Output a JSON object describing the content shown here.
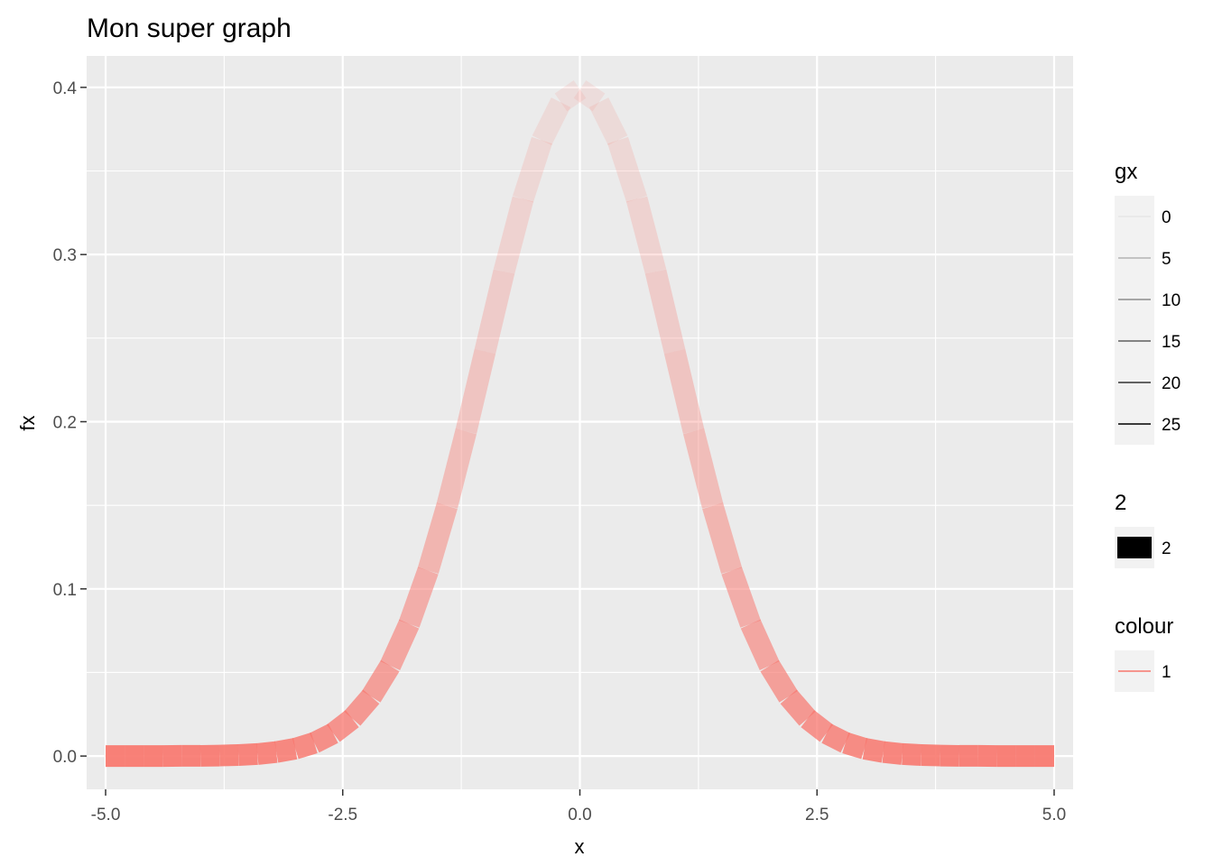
{
  "chart_data": {
    "type": "line",
    "title": "Mon super graph",
    "xlabel": "x",
    "ylabel": "fx",
    "xlim": [
      -5.2,
      5.2
    ],
    "ylim": [
      -0.0199,
      0.4188
    ],
    "x_ticks": [
      -5.0,
      -2.5,
      0.0,
      2.5,
      5.0
    ],
    "x_tick_labels": [
      "-5.0",
      "-2.5",
      "0.0",
      "2.5",
      "5.0"
    ],
    "y_ticks": [
      0.0,
      0.1,
      0.2,
      0.3,
      0.4
    ],
    "y_tick_labels": [
      "0.0",
      "0.1",
      "0.2",
      "0.3",
      "0.4"
    ],
    "grid": true,
    "series": [
      {
        "x": [
          -5.0,
          -4.8,
          -4.6,
          -4.4,
          -4.2,
          -4.0,
          -3.8,
          -3.6,
          -3.4,
          -3.2,
          -3.0,
          -2.8,
          -2.6,
          -2.4,
          -2.2,
          -2.0,
          -1.8,
          -1.6,
          -1.4,
          -1.2,
          -1.0,
          -0.8,
          -0.6,
          -0.4,
          -0.2,
          0.0,
          0.2,
          0.4,
          0.6,
          0.8,
          1.0,
          1.2,
          1.4,
          1.6,
          1.8,
          2.0,
          2.2,
          2.4,
          2.6,
          2.8,
          3.0,
          3.2,
          3.4,
          3.6,
          3.8,
          4.0,
          4.2,
          4.4,
          4.6,
          4.8,
          5.0
        ],
        "values": [
          0.0,
          0.0,
          0.0,
          0.0,
          0.0001,
          0.0001,
          0.0003,
          0.0006,
          0.0012,
          0.0024,
          0.0044,
          0.0079,
          0.0136,
          0.0224,
          0.0355,
          0.054,
          0.079,
          0.1109,
          0.1497,
          0.1942,
          0.242,
          0.2897,
          0.3332,
          0.3683,
          0.391,
          0.3989,
          0.391,
          0.3683,
          0.3332,
          0.2897,
          0.242,
          0.1942,
          0.1497,
          0.1109,
          0.079,
          0.054,
          0.0355,
          0.0224,
          0.0136,
          0.0079,
          0.0044,
          0.0024,
          0.0012,
          0.0006,
          0.0003,
          0.0001,
          0.0001,
          0.0,
          0.0,
          0.0,
          0.0
        ],
        "color": "#f8766d"
      }
    ],
    "legend_position": "right",
    "legends": [
      {
        "title": "gx",
        "entries": [
          "0",
          "5",
          "10",
          "15",
          "20",
          "25"
        ],
        "key_colors": [
          "#e6e6e6",
          "#b3b3b3",
          "#8c8c8c",
          "#5e5e5e",
          "#333333",
          "#000000"
        ]
      },
      {
        "title": "2",
        "entries": [
          "2"
        ],
        "key_colors": [
          "#000000"
        ]
      },
      {
        "title": "colour",
        "entries": [
          "1"
        ],
        "key_colors": [
          "#f8766d"
        ]
      }
    ],
    "panel_color": "#ebebeb",
    "grid_color": "#ffffff"
  }
}
